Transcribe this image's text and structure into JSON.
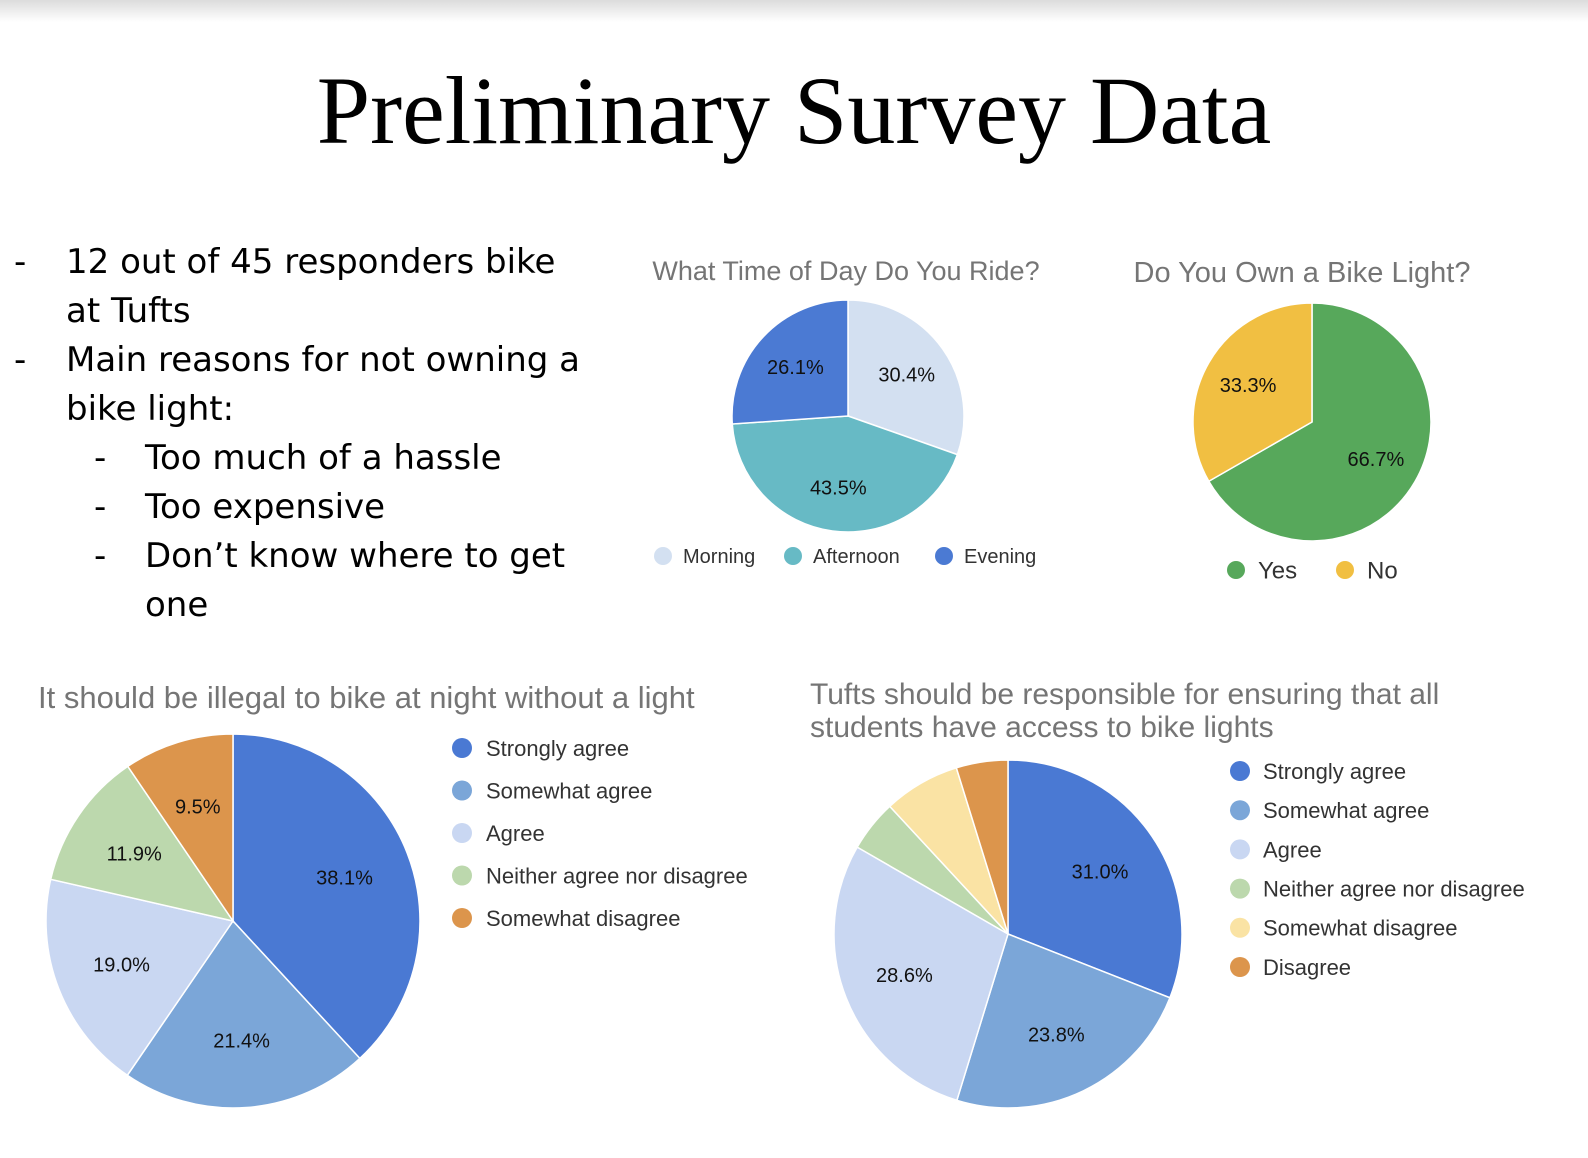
{
  "title": "Preliminary Survey Data",
  "bullets": [
    {
      "level": 1,
      "dash": "-",
      "lines": [
        "12 out of 45 responders bike",
        "at Tufts"
      ]
    },
    {
      "level": 1,
      "dash": "-",
      "lines": [
        "Main reasons for not owning a",
        "bike light:"
      ]
    },
    {
      "level": 2,
      "dash": "-",
      "lines": [
        "Too much of a hassle"
      ]
    },
    {
      "level": 2,
      "dash": "-",
      "lines": [
        "Too expensive"
      ]
    },
    {
      "level": 2,
      "dash": "-",
      "lines": [
        "Don’t know where to get",
        "one"
      ]
    }
  ],
  "chart_data": [
    {
      "type": "pie",
      "title": [
        "What Time of Day Do You Ride?"
      ],
      "slices": [
        {
          "label": "Morning",
          "value": 30.4,
          "display": "30.4%",
          "color": "#d3e0f1"
        },
        {
          "label": "Afternoon",
          "value": 43.5,
          "display": "43.5%",
          "color": "#67bac5"
        },
        {
          "label": "Evening",
          "value": 26.1,
          "display": "26.1%",
          "color": "#4b7ad3"
        }
      ],
      "legend_position": "bottom"
    },
    {
      "type": "pie",
      "title": [
        "Do You Own a Bike Light?"
      ],
      "slices": [
        {
          "label": "Yes",
          "value": 66.7,
          "display": "66.7%",
          "color": "#57a85b"
        },
        {
          "label": "No",
          "value": 33.3,
          "display": "33.3%",
          "color": "#f1bf42"
        }
      ],
      "legend_position": "bottom"
    },
    {
      "type": "pie",
      "title": [
        "It should be illegal to bike at night without a light"
      ],
      "slices": [
        {
          "label": "Strongly agree",
          "value": 38.1,
          "display": "38.1%",
          "color": "#4a79d3"
        },
        {
          "label": "Somewhat agree",
          "value": 21.4,
          "display": "21.4%",
          "color": "#7ba6d8"
        },
        {
          "label": "Agree",
          "value": 19.0,
          "display": "19.0%",
          "color": "#c9d7f2"
        },
        {
          "label": "Neither agree nor disagree",
          "value": 11.9,
          "display": "11.9%",
          "color": "#bcd8ad"
        },
        {
          "label": "Somewhat disagree",
          "value": 9.5,
          "display": "9.5%",
          "color": "#dc954c"
        }
      ],
      "legend_position": "right"
    },
    {
      "type": "pie",
      "title": [
        "Tufts should be responsible for ensuring that all",
        "students have access to bike lights"
      ],
      "slices": [
        {
          "label": "Strongly agree",
          "value": 31.0,
          "display": "31.0%",
          "color": "#4a79d3"
        },
        {
          "label": "Somewhat agree",
          "value": 23.8,
          "display": "23.8%",
          "color": "#7ba6d8"
        },
        {
          "label": "Agree",
          "value": 28.6,
          "display": "28.6%",
          "color": "#c9d7f2"
        },
        {
          "label": "Neither agree nor disagree",
          "value": 4.8,
          "display": "",
          "color": "#bcd8ad"
        },
        {
          "label": "Somewhat disagree",
          "value": 7.1,
          "display": "",
          "color": "#fae3a4"
        },
        {
          "label": "Disagree",
          "value": 4.8,
          "display": "",
          "color": "#dc954c"
        }
      ],
      "legend_position": "right"
    }
  ]
}
